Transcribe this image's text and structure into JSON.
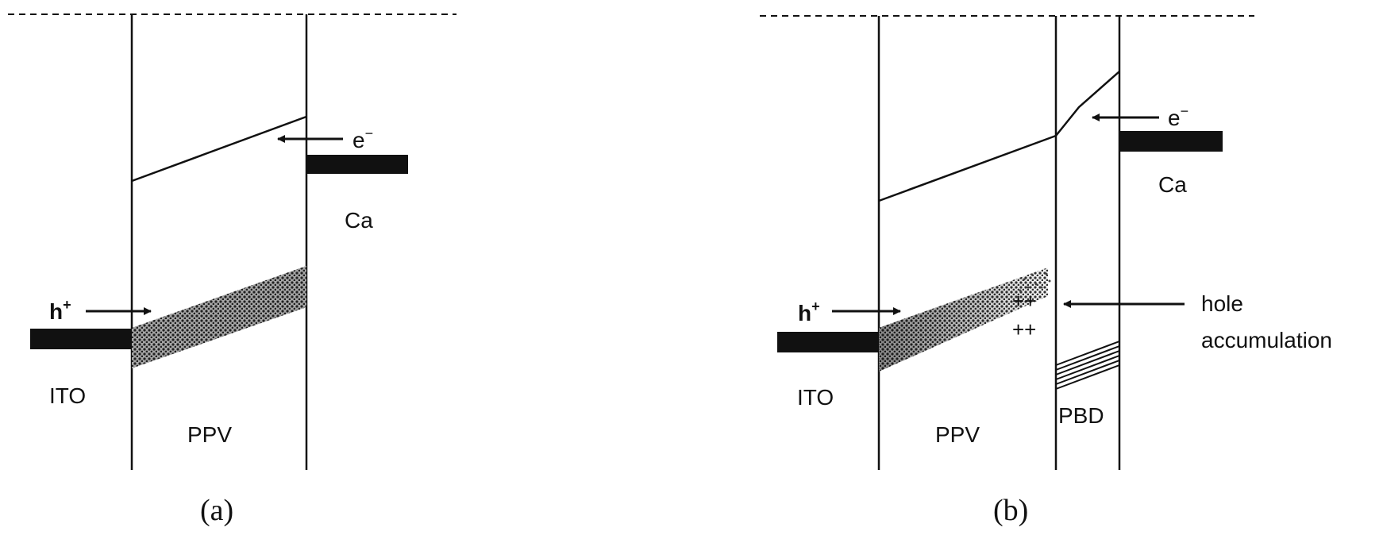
{
  "colors": {
    "ink": "#111111",
    "band": "#555555"
  },
  "panel_a": {
    "caption": "(a)",
    "hole_label": "h",
    "hole_sup": "+",
    "electron_label": "e",
    "electron_sup": "−",
    "anode_label": "ITO",
    "polymer_label": "PPV",
    "cathode_label": "Ca"
  },
  "panel_b": {
    "caption": "(b)",
    "hole_label": "h",
    "hole_sup": "+",
    "electron_label": "e",
    "electron_sup": "−",
    "anode_label": "ITO",
    "polymer_label": "PPV",
    "transport_label": "PBD",
    "cathode_label": "Ca",
    "accumulation_line1": "hole",
    "accumulation_line2": "accumulation",
    "charge_row1": "++",
    "charge_row2": "++"
  }
}
